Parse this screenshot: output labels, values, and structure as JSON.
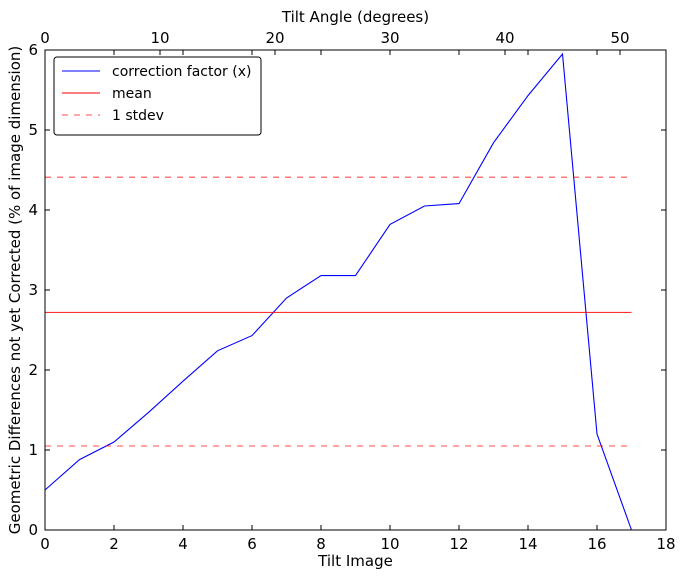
{
  "chart_data": {
    "type": "line",
    "xlabel": "Tilt Image",
    "ylabel": "Geometric Differences not yet Corrected (% of image dimension)",
    "x2label": "Tilt Angle (degrees)",
    "xlim": [
      0,
      18
    ],
    "ylim": [
      0,
      6
    ],
    "x2lim": [
      0,
      54
    ],
    "xticks": [
      "0",
      "2",
      "4",
      "6",
      "8",
      "10",
      "12",
      "14",
      "16",
      "18"
    ],
    "yticks": [
      "0",
      "1",
      "2",
      "3",
      "4",
      "5",
      "6"
    ],
    "x2ticks": [
      "0",
      "10",
      "20",
      "30",
      "40",
      "50"
    ],
    "grid": false,
    "legend_position": "top-left",
    "series": [
      {
        "name": "correction factor (x)",
        "color": "#0000ff",
        "style": "solid",
        "x": [
          0,
          1,
          2,
          3,
          4,
          5,
          6,
          7,
          8,
          9,
          10,
          11,
          12,
          13,
          14,
          15,
          16,
          17
        ],
        "y": [
          0.5,
          0.88,
          1.1,
          1.47,
          1.86,
          2.24,
          2.43,
          2.9,
          3.18,
          3.18,
          3.82,
          4.05,
          4.08,
          4.84,
          5.43,
          5.95,
          1.2,
          0.0
        ]
      },
      {
        "name": "mean",
        "color": "#ff0000",
        "style": "solid",
        "x": [
          0,
          17
        ],
        "y": [
          2.72,
          2.72
        ]
      },
      {
        "name": "1 stdev",
        "color": "#ff0000",
        "style": "dashed",
        "x": [
          0,
          17
        ],
        "y": [
          4.41,
          4.41
        ]
      },
      {
        "name": "",
        "color": "#ff0000",
        "style": "dashed",
        "x": [
          0,
          17
        ],
        "y": [
          1.05,
          1.05
        ]
      }
    ]
  }
}
